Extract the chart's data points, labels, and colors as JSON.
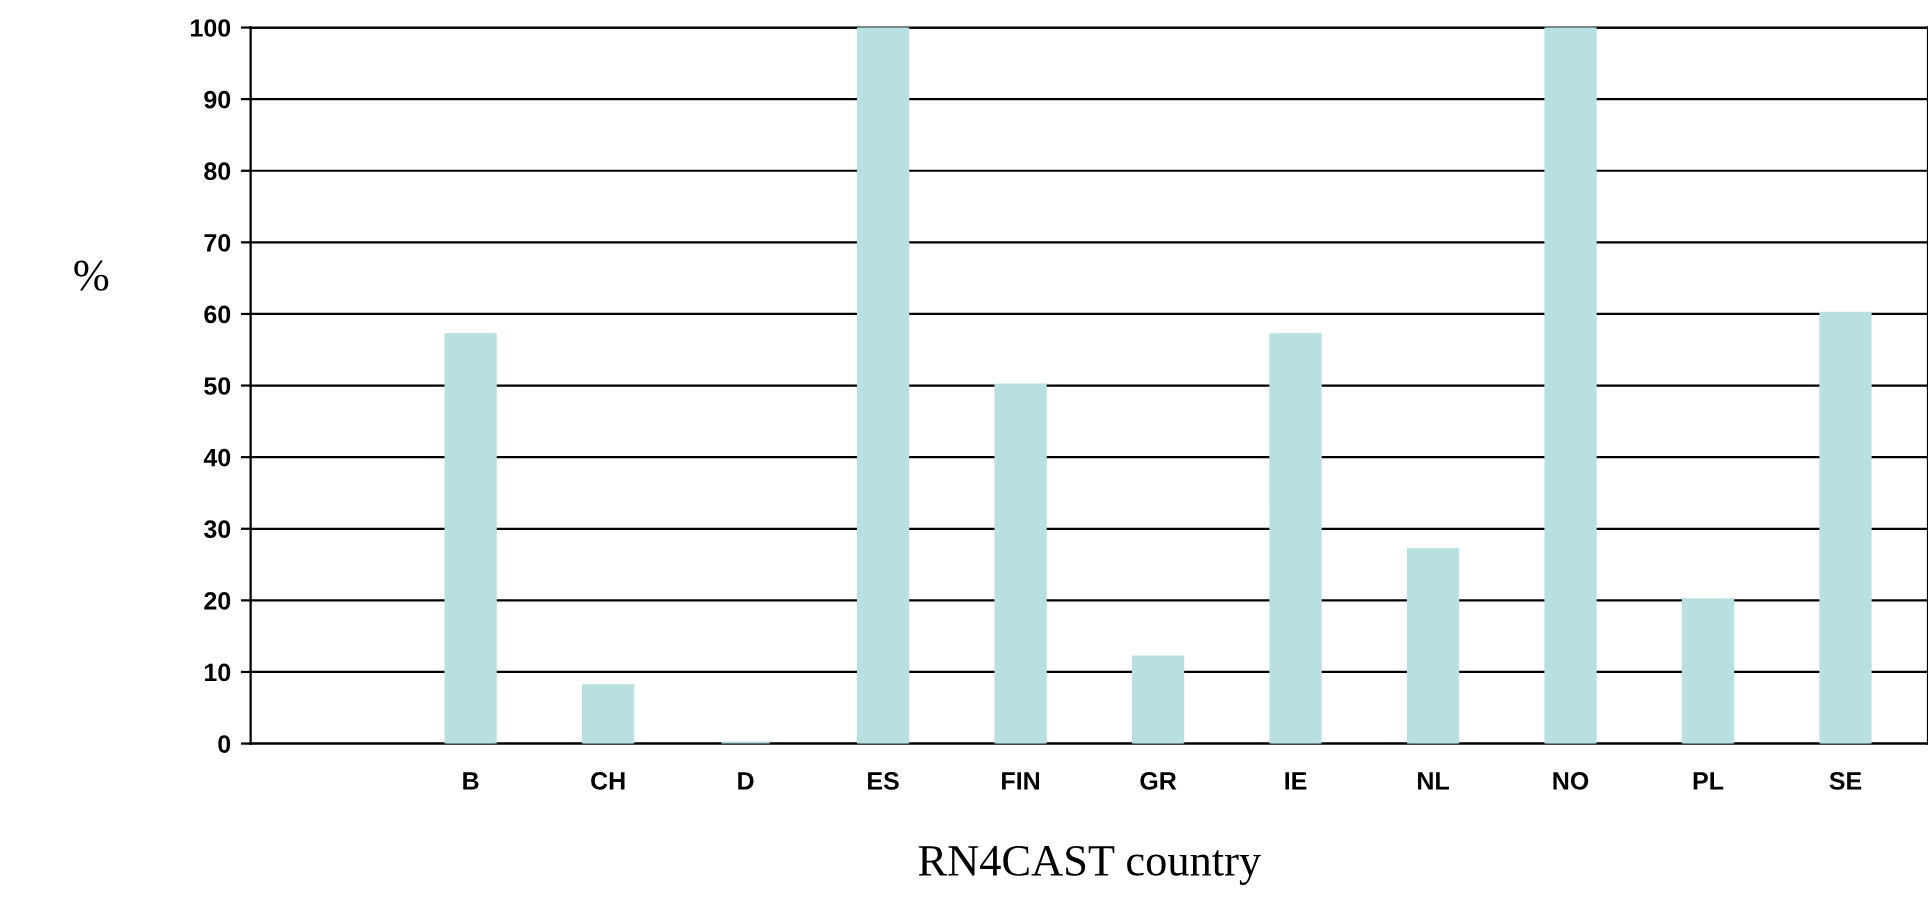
{
  "chart_data": {
    "type": "bar",
    "xlabel": "RN4CAST country",
    "ylabel": "%",
    "categories": [
      "B",
      "CH",
      "D",
      "ES",
      "FIN",
      "GR",
      "IE",
      "NL",
      "NO",
      "PL",
      "SE"
    ],
    "values": [
      57,
      8,
      0,
      100,
      50,
      12,
      57,
      27,
      100,
      20,
      60
    ],
    "color": "#b8e0e0",
    "ylim": [
      0,
      100
    ],
    "yticks": [
      0,
      10,
      20,
      30,
      40,
      50,
      60,
      70,
      80,
      90,
      100
    ],
    "grid": "y"
  }
}
